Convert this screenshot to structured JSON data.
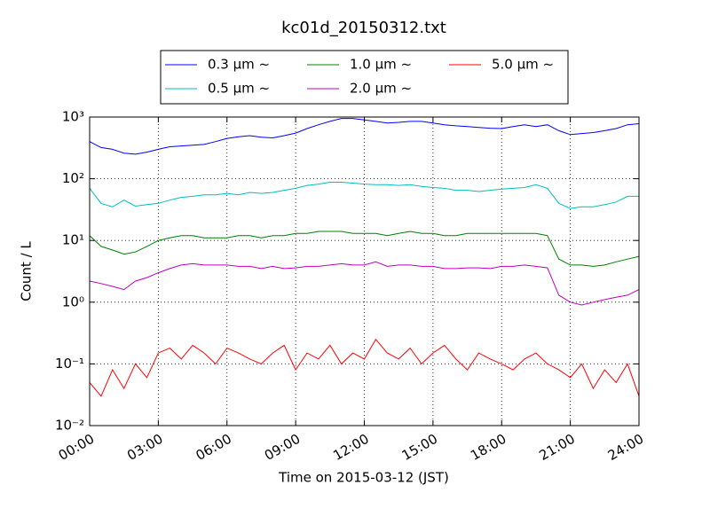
{
  "chart_data": {
    "type": "line",
    "title": "kc01d_20150312.txt",
    "x_label": "Time on 2015-03-12 (JST)",
    "y_label": "Count / L",
    "x": [
      0,
      0.5,
      1,
      1.5,
      2,
      2.5,
      3,
      3.5,
      4,
      4.5,
      5,
      5.5,
      6,
      6.5,
      7,
      7.5,
      8,
      8.5,
      9,
      9.5,
      10,
      10.5,
      11,
      11.5,
      12,
      12.5,
      13,
      13.5,
      14,
      14.5,
      15,
      15.5,
      16,
      16.5,
      17,
      17.5,
      18,
      18.5,
      19,
      19.5,
      20,
      20.5,
      21,
      21.5,
      22,
      22.5,
      23,
      23.5,
      24
    ],
    "series": [
      {
        "name": "0.3 μm ~",
        "color": "#0000ff",
        "values": [
          400,
          320,
          300,
          260,
          250,
          270,
          300,
          330,
          340,
          350,
          360,
          400,
          450,
          480,
          500,
          470,
          460,
          500,
          550,
          650,
          750,
          850,
          950,
          950,
          900,
          850,
          800,
          820,
          850,
          850,
          800,
          750,
          720,
          700,
          680,
          660,
          650,
          700,
          750,
          700,
          750,
          600,
          520,
          540,
          560,
          600,
          650,
          750,
          780
        ]
      },
      {
        "name": "0.5 μm ~",
        "color": "#00bfbf",
        "values": [
          70,
          40,
          35,
          45,
          36,
          38,
          40,
          45,
          50,
          52,
          55,
          55,
          58,
          55,
          60,
          58,
          60,
          65,
          70,
          78,
          82,
          88,
          88,
          85,
          82,
          80,
          80,
          78,
          80,
          75,
          72,
          70,
          65,
          65,
          62,
          65,
          68,
          70,
          72,
          80,
          70,
          40,
          33,
          35,
          35,
          38,
          42,
          52,
          52
        ]
      },
      {
        "name": "1.0 μm ~",
        "color": "#008000",
        "values": [
          12,
          8,
          7,
          6,
          6.5,
          8,
          10,
          11,
          12,
          12,
          11,
          11,
          11,
          12,
          12,
          11,
          12,
          12,
          13,
          13,
          14,
          14,
          14,
          13,
          13,
          13,
          12,
          13,
          14,
          13,
          13,
          12,
          12,
          13,
          13,
          13,
          13,
          13,
          13,
          13,
          12,
          5,
          4,
          4,
          3.8,
          4,
          4.5,
          5,
          5.5
        ]
      },
      {
        "name": "2.0 μm ~",
        "color": "#bf00bf",
        "values": [
          2.2,
          2.0,
          1.8,
          1.6,
          2.2,
          2.5,
          3,
          3.5,
          4,
          4.2,
          4,
          4,
          4,
          3.8,
          3.8,
          3.5,
          3.8,
          3.5,
          3.6,
          3.8,
          3.8,
          4,
          4.2,
          4,
          4,
          4.5,
          3.8,
          4,
          4,
          3.8,
          3.8,
          3.5,
          3.5,
          3.6,
          3.6,
          3.5,
          3.8,
          3.8,
          4,
          3.8,
          3.6,
          1.3,
          1.0,
          0.9,
          1.0,
          1.1,
          1.2,
          1.3,
          1.6
        ]
      },
      {
        "name": "5.0 μm ~",
        "color": "#ff0000",
        "values": [
          0.05,
          0.03,
          0.08,
          0.04,
          0.1,
          0.06,
          0.15,
          0.18,
          0.12,
          0.2,
          0.15,
          0.1,
          0.18,
          0.15,
          0.12,
          0.1,
          0.15,
          0.2,
          0.08,
          0.15,
          0.12,
          0.2,
          0.1,
          0.15,
          0.12,
          0.25,
          0.15,
          0.12,
          0.18,
          0.1,
          0.15,
          0.2,
          0.12,
          0.08,
          0.15,
          0.12,
          0.1,
          0.08,
          0.12,
          0.15,
          0.1,
          0.08,
          0.06,
          0.1,
          0.04,
          0.08,
          0.05,
          0.1,
          0.03
        ]
      }
    ],
    "xlim": [
      0,
      24
    ],
    "xticks": [
      {
        "value": 0,
        "label": "00:00"
      },
      {
        "value": 3,
        "label": "03:00"
      },
      {
        "value": 6,
        "label": "06:00"
      },
      {
        "value": 9,
        "label": "09:00"
      },
      {
        "value": 12,
        "label": "12:00"
      },
      {
        "value": 15,
        "label": "15:00"
      },
      {
        "value": 18,
        "label": "18:00"
      },
      {
        "value": 21,
        "label": "21:00"
      },
      {
        "value": 24,
        "label": "24:00"
      }
    ],
    "ylim": [
      0.01,
      1000
    ],
    "y_scale": "log",
    "yticks": [
      {
        "value": 0.01,
        "label": "10⁻²"
      },
      {
        "value": 0.1,
        "label": "10⁻¹"
      },
      {
        "value": 1,
        "label": "10⁰"
      },
      {
        "value": 10,
        "label": "10¹"
      },
      {
        "value": 100,
        "label": "10²"
      },
      {
        "value": 1000,
        "label": "10³"
      }
    ],
    "grid": true,
    "legend": "top"
  }
}
